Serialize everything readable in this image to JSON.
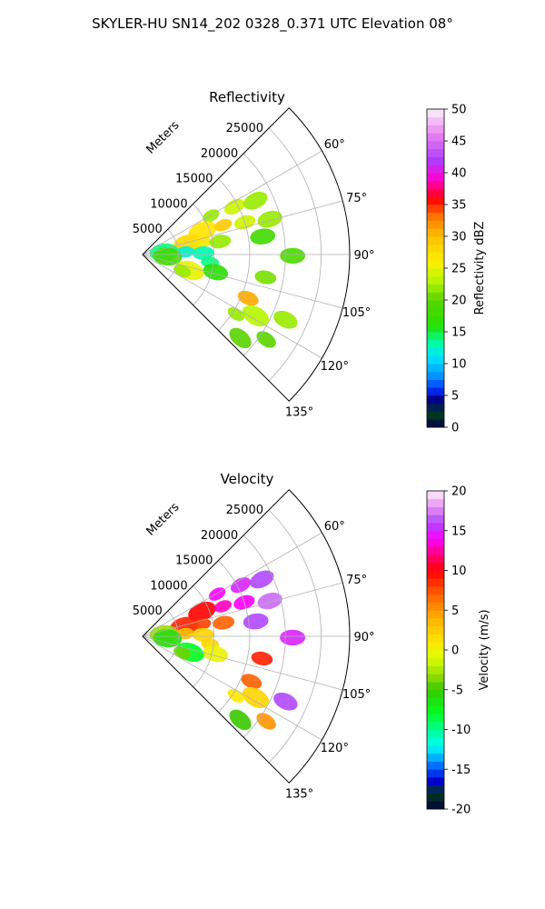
{
  "figure_title": "SKYLER-HU  SN14_202  0328_0.371 UTC Elevation 08°",
  "chart_data": [
    {
      "type": "heatmap",
      "projection": "polar-sector",
      "title": "Reflectivity",
      "radial_label": "Meters",
      "radial_ticks": [
        "5000",
        "10000",
        "15000",
        "20000",
        "25000"
      ],
      "radial_tick_values": [
        5000,
        10000,
        15000,
        20000,
        25000
      ],
      "radial_max": 29000,
      "angle_ticks": [
        "60°",
        "75°",
        "90°",
        "105°",
        "120°",
        "135°"
      ],
      "angle_tick_values": [
        60,
        75,
        90,
        105,
        120,
        135
      ],
      "angle_range": [
        45,
        135
      ],
      "grid": true,
      "colorbar": {
        "label": "Reflectivity dBZ",
        "ticks": [
          "0",
          "5",
          "10",
          "15",
          "20",
          "25",
          "30",
          "35",
          "40",
          "45",
          "50"
        ],
        "tick_values": [
          0,
          5,
          10,
          15,
          20,
          25,
          30,
          35,
          40,
          45,
          50
        ],
        "range": [
          0,
          50
        ]
      },
      "cells": [
        {
          "az": 60.5,
          "r": 11000,
          "value": 22
        },
        {
          "az": 62.5,
          "r": 14500,
          "value": 24
        },
        {
          "az": 64.5,
          "r": 17500,
          "value": 22
        },
        {
          "az": 68.5,
          "r": 9000,
          "value": 27
        },
        {
          "az": 70.0,
          "r": 12000,
          "value": 29
        },
        {
          "az": 72.5,
          "r": 15000,
          "value": 24
        },
        {
          "az": 74.5,
          "r": 18500,
          "value": 22
        },
        {
          "az": 76.5,
          "r": 6500,
          "value": 28
        },
        {
          "az": 78.5,
          "r": 8500,
          "value": 27
        },
        {
          "az": 80.5,
          "r": 11000,
          "value": 22
        },
        {
          "az": 81.5,
          "r": 17000,
          "value": 18
        },
        {
          "az": 84.5,
          "r": 3000,
          "value": 14
        },
        {
          "az": 86.5,
          "r": 6000,
          "value": 12
        },
        {
          "az": 88.5,
          "r": 8500,
          "value": 13
        },
        {
          "az": 90.5,
          "r": 21000,
          "value": 19
        },
        {
          "az": 94.5,
          "r": 3500,
          "value": 18
        },
        {
          "az": 96.5,
          "r": 9500,
          "value": 14
        },
        {
          "az": 100.5,
          "r": 17500,
          "value": 21
        },
        {
          "az": 103.5,
          "r": 10500,
          "value": 16
        },
        {
          "az": 108.5,
          "r": 7000,
          "value": 25
        },
        {
          "az": 112.5,
          "r": 6000,
          "value": 22
        },
        {
          "az": 112.5,
          "r": 16000,
          "value": 31
        },
        {
          "az": 114.5,
          "r": 22000,
          "value": 22
        },
        {
          "az": 118.5,
          "r": 18000,
          "value": 23
        },
        {
          "az": 122.5,
          "r": 15500,
          "value": 22
        },
        {
          "az": 124.5,
          "r": 21000,
          "value": 20
        },
        {
          "az": 130.5,
          "r": 18000,
          "value": 20
        }
      ]
    },
    {
      "type": "heatmap",
      "projection": "polar-sector",
      "title": "Velocity",
      "radial_label": "Meters",
      "radial_ticks": [
        "5000",
        "10000",
        "15000",
        "20000",
        "25000"
      ],
      "radial_tick_values": [
        5000,
        10000,
        15000,
        20000,
        25000
      ],
      "radial_max": 29000,
      "angle_ticks": [
        "60°",
        "75°",
        "90°",
        "105°",
        "120°",
        "135°"
      ],
      "angle_tick_values": [
        60,
        75,
        90,
        105,
        120,
        135
      ],
      "angle_range": [
        45,
        135
      ],
      "grid": true,
      "colorbar": {
        "label": "Velocity (m/s)",
        "ticks": [
          "-20",
          "-15",
          "-10",
          "-5",
          "0",
          "5",
          "10",
          "15",
          "20"
        ],
        "tick_values": [
          -20,
          -15,
          -10,
          -5,
          0,
          5,
          10,
          15,
          20
        ],
        "range": [
          -20,
          20
        ]
      },
      "cells": [
        {
          "az": 60.5,
          "r": 12000,
          "value": 14
        },
        {
          "az": 62.5,
          "r": 15500,
          "value": 15
        },
        {
          "az": 64.5,
          "r": 18500,
          "value": 16
        },
        {
          "az": 67.5,
          "r": 9000,
          "value": 10
        },
        {
          "az": 69.5,
          "r": 12000,
          "value": 13
        },
        {
          "az": 71.5,
          "r": 15000,
          "value": 14
        },
        {
          "az": 74.5,
          "r": 18500,
          "value": 17
        },
        {
          "az": 76.5,
          "r": 6000,
          "value": 9
        },
        {
          "az": 78.5,
          "r": 8500,
          "value": 8
        },
        {
          "az": 80.5,
          "r": 11500,
          "value": 7
        },
        {
          "az": 82.5,
          "r": 16000,
          "value": 16
        },
        {
          "az": 84.5,
          "r": 3000,
          "value": -3
        },
        {
          "az": 86.5,
          "r": 6000,
          "value": 3
        },
        {
          "az": 88.5,
          "r": 8500,
          "value": 2
        },
        {
          "az": 90.5,
          "r": 21000,
          "value": 15
        },
        {
          "az": 94.5,
          "r": 3500,
          "value": -6
        },
        {
          "az": 96.5,
          "r": 9500,
          "value": 2
        },
        {
          "az": 100.5,
          "r": 17000,
          "value": 9
        },
        {
          "az": 103.5,
          "r": 10500,
          "value": 0
        },
        {
          "az": 108.5,
          "r": 7000,
          "value": -8
        },
        {
          "az": 112.5,
          "r": 6000,
          "value": -4
        },
        {
          "az": 112.5,
          "r": 16500,
          "value": 7
        },
        {
          "az": 114.5,
          "r": 22000,
          "value": 16
        },
        {
          "az": 118.5,
          "r": 18000,
          "value": 2
        },
        {
          "az": 122.5,
          "r": 15500,
          "value": 1
        },
        {
          "az": 124.5,
          "r": 21000,
          "value": 5
        },
        {
          "az": 130.5,
          "r": 18000,
          "value": -5
        }
      ]
    }
  ]
}
